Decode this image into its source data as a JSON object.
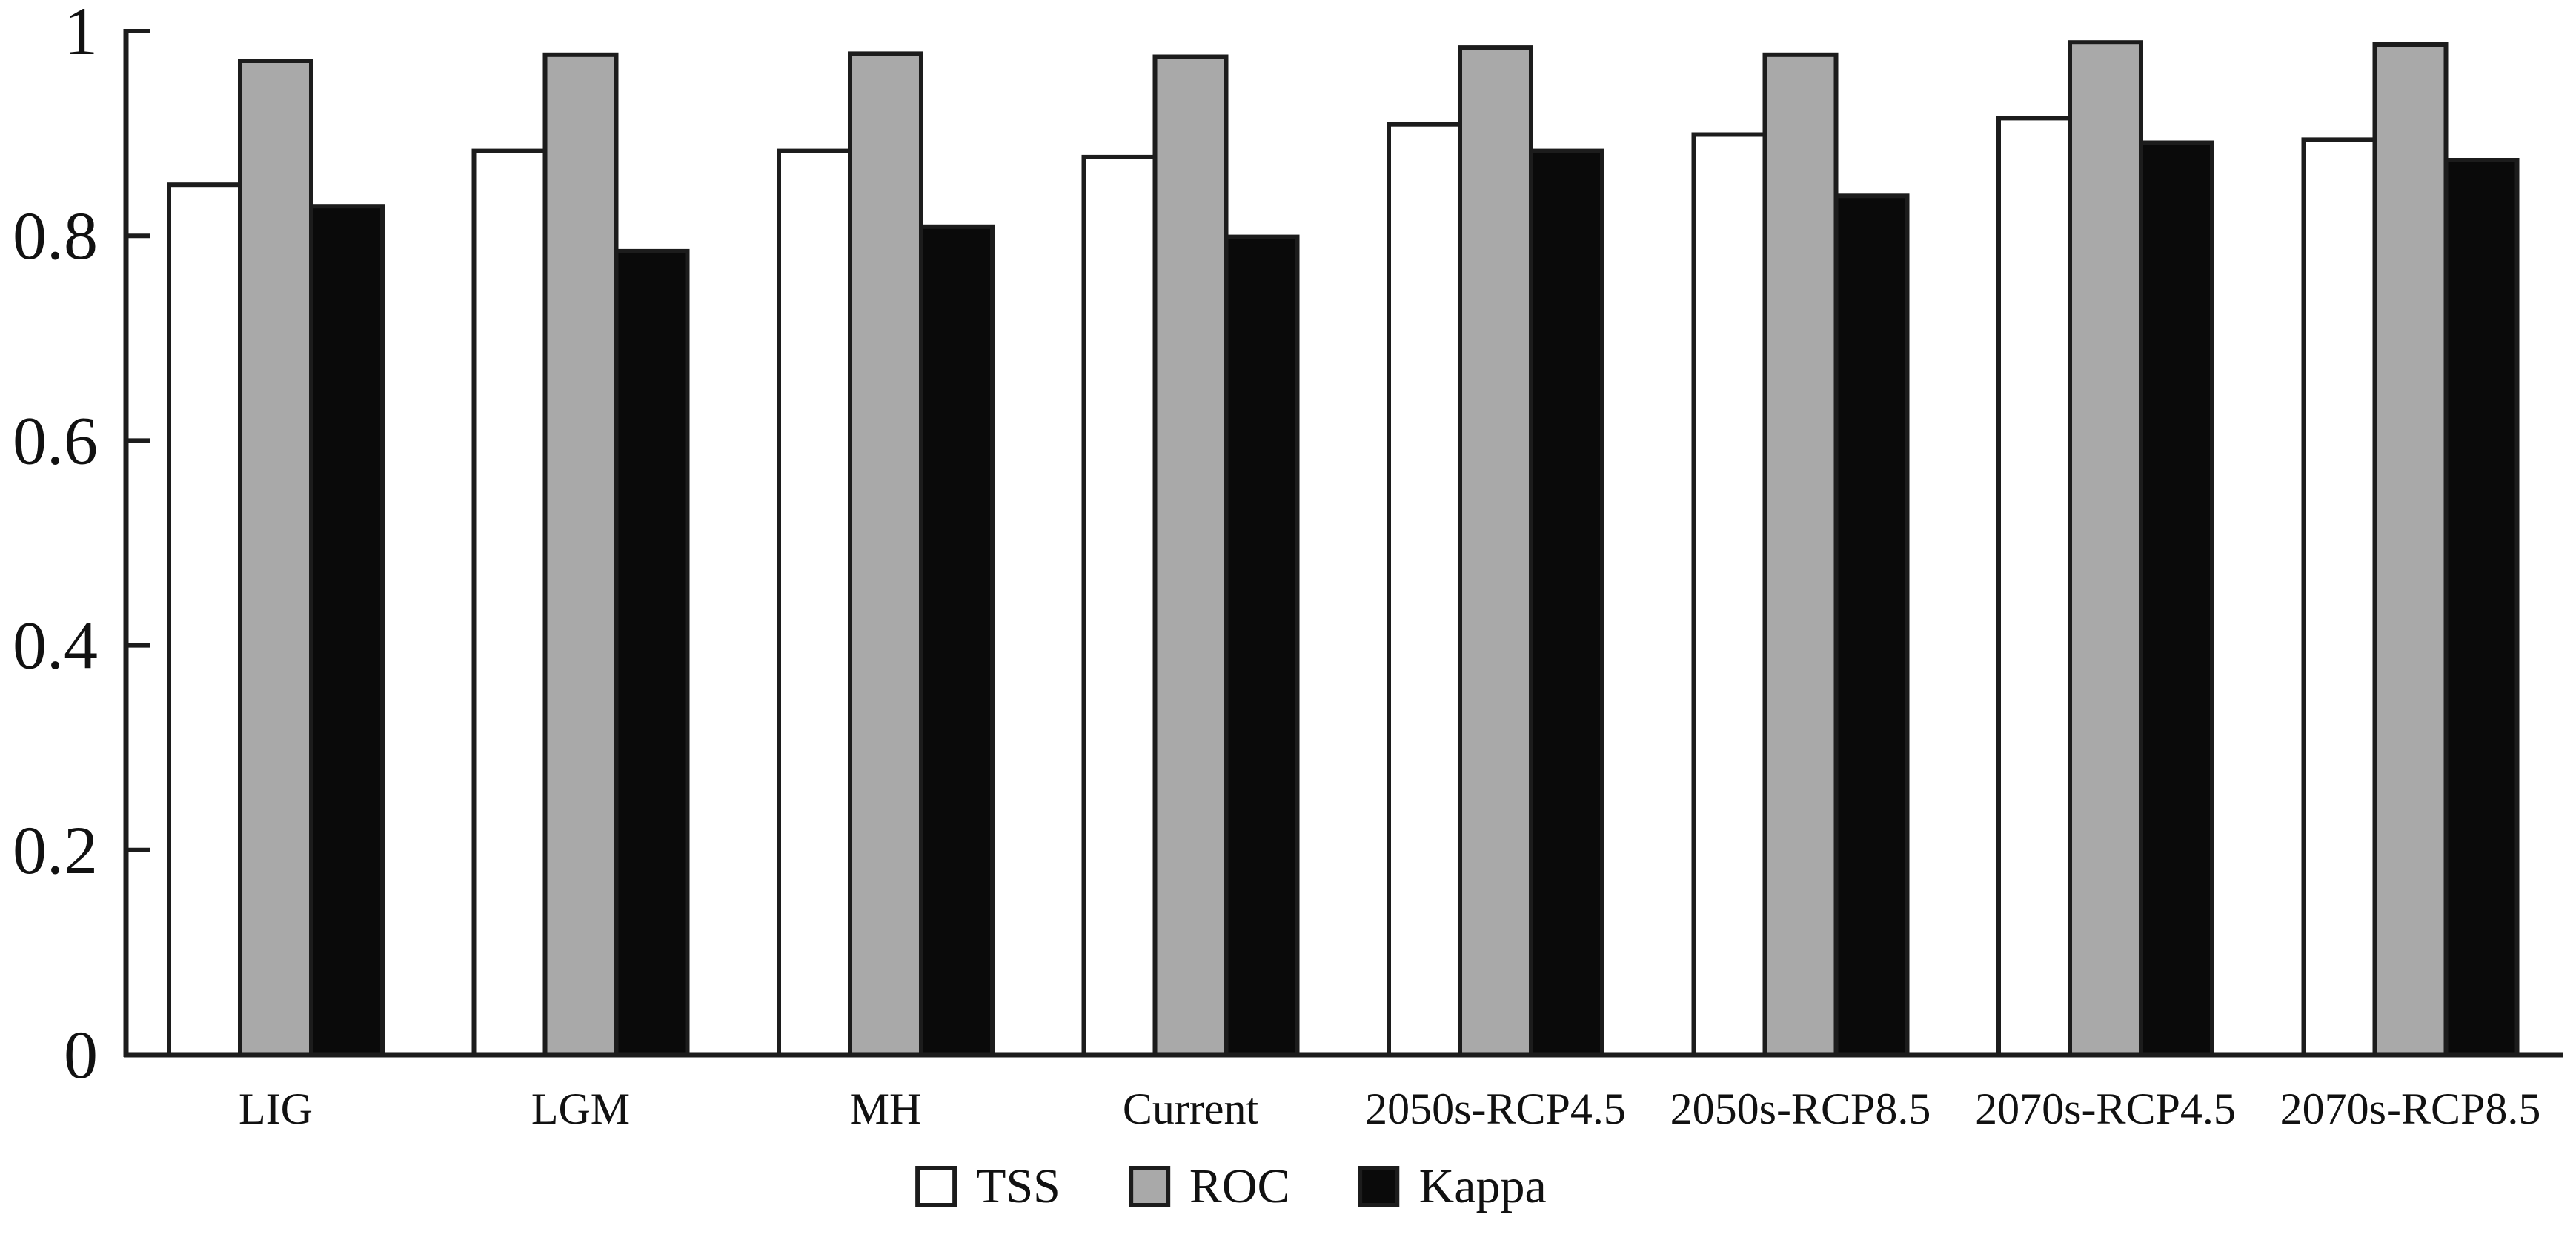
{
  "chart_data": {
    "type": "bar",
    "title": "",
    "categories": [
      "LIG",
      "LGM",
      "MH",
      "Current",
      "2050s-RCP4.5",
      "2050s-RCP8.5",
      "2070s-RCP4.5",
      "2070s-RCP8.5"
    ],
    "series": [
      {
        "name": "TSS",
        "color": "#ffffff",
        "values": [
          0.85,
          0.883,
          0.883,
          0.877,
          0.909,
          0.899,
          0.915,
          0.894
        ]
      },
      {
        "name": "ROC",
        "color": "#a9a9a9",
        "values": [
          0.971,
          0.977,
          0.978,
          0.975,
          0.984,
          0.977,
          0.989,
          0.987
        ]
      },
      {
        "name": "Kappa",
        "color": "#0a0a0a",
        "values": [
          0.829,
          0.785,
          0.809,
          0.799,
          0.883,
          0.839,
          0.891,
          0.874
        ]
      }
    ],
    "xlabel": "",
    "ylabel": "",
    "ylim": [
      0,
      1
    ],
    "y_ticks": [
      "1",
      "0.8",
      "0.6",
      "0.4",
      "0.2",
      "0"
    ],
    "grid": false,
    "legend_position": "bottom-center",
    "axis_color": "#1c1c1c",
    "text_color": "#111111",
    "background": "#ffffff"
  }
}
